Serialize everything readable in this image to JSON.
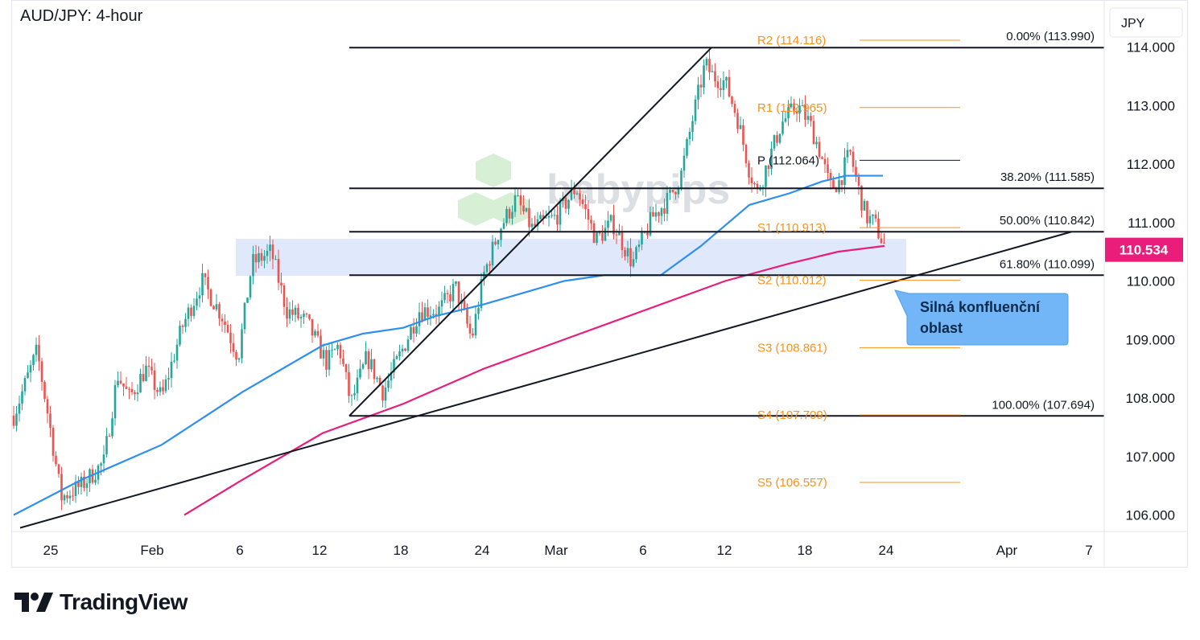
{
  "chart_data": {
    "type": "candlestick",
    "title": "AUD/JPY: 4-hour",
    "currency_label": "JPY",
    "current_price": "110.534",
    "ylim": [
      105.75,
      114.75
    ],
    "y_ticks": [
      "114.000",
      "113.000",
      "112.000",
      "111.000",
      "110.000",
      "109.000",
      "108.000",
      "107.000",
      "106.000"
    ],
    "x_ticks": [
      "25",
      "Feb",
      "6",
      "12",
      "18",
      "24",
      "Mar",
      "6",
      "12",
      "18",
      "24",
      "Apr",
      "7"
    ],
    "fibonacci": [
      {
        "label": "0.00% (113.990)",
        "value": 113.99
      },
      {
        "label": "38.20% (111.585)",
        "value": 111.585
      },
      {
        "label": "50.00% (110.842)",
        "value": 110.842
      },
      {
        "label": "61.80% (110.099)",
        "value": 110.099
      },
      {
        "label": "100.00% (107.694)",
        "value": 107.694
      }
    ],
    "pivots": [
      {
        "label": "R2 (114.116)",
        "value": 114.116,
        "color": "#f7931e"
      },
      {
        "label": "R1 (112.965)",
        "value": 112.965,
        "color": "#f7931e"
      },
      {
        "label": "P (112.064)",
        "value": 112.064,
        "color": "#131722"
      },
      {
        "label": "S1 (110.913)",
        "value": 110.913,
        "color": "#f7931e"
      },
      {
        "label": "S2 (110.012)",
        "value": 110.012,
        "color": "#f7931e"
      },
      {
        "label": "S3 (108.861)",
        "value": 108.861,
        "color": "#f7931e"
      },
      {
        "label": "S4 (107.709)",
        "value": 107.709,
        "color": "#f7931e"
      },
      {
        "label": "S5 (106.557)",
        "value": 106.557,
        "color": "#f7931e"
      }
    ],
    "confluence_zone": {
      "from": 110.09,
      "to": 110.72
    },
    "annotation": {
      "line1": "Silná konfluenční",
      "line2": "oblast"
    },
    "watermark": "babypips",
    "colors": {
      "up": "#26a69a",
      "down": "#ef5350",
      "ma_short": "#2f8ff0",
      "ma_long": "#e91e7a",
      "accent": "#f7931e",
      "callout": "#72b6f7",
      "zone": "#dde5fb",
      "price_tag": "#e91e7a"
    },
    "series": [
      {
        "name": "",
        "kind": "ma_short"
      },
      {
        "name": "",
        "kind": "ma_long"
      }
    ]
  },
  "footer": {
    "brand": "TradingView"
  }
}
